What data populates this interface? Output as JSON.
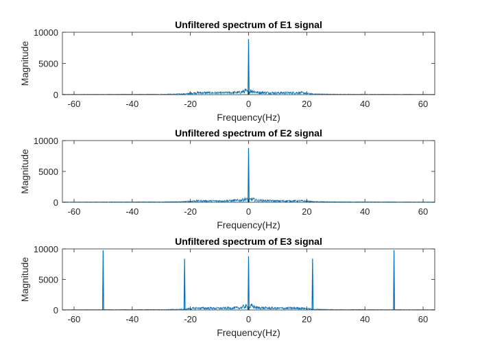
{
  "chart_data": [
    {
      "type": "line",
      "title": "Unfiltered spectrum of E1 signal",
      "xlabel": "Frequency(Hz)",
      "ylabel": "Magnitude",
      "xlim": [
        -64,
        64
      ],
      "ylim": [
        0,
        10000
      ],
      "xticks": [
        -60,
        -40,
        -20,
        0,
        20,
        40,
        60
      ],
      "yticks": [
        0,
        5000,
        10000
      ],
      "grid": false,
      "color": "#0072bd",
      "noise_floor": [
        {
          "x": -64,
          "y": 40
        },
        {
          "x": -30,
          "y": 60
        },
        {
          "x": -22,
          "y": 120
        },
        {
          "x": -18,
          "y": 330
        },
        {
          "x": -10,
          "y": 300
        },
        {
          "x": -3,
          "y": 380
        },
        {
          "x": -1,
          "y": 650
        },
        {
          "x": 0,
          "y": 400
        },
        {
          "x": 1,
          "y": 700
        },
        {
          "x": 3,
          "y": 380
        },
        {
          "x": 10,
          "y": 300
        },
        {
          "x": 18,
          "y": 330
        },
        {
          "x": 22,
          "y": 120
        },
        {
          "x": 30,
          "y": 60
        },
        {
          "x": 64,
          "y": 40
        }
      ],
      "peaks": [
        {
          "x": 0,
          "y": 8900
        }
      ]
    },
    {
      "type": "line",
      "title": "Unfiltered spectrum of E2 signal",
      "xlabel": "Frequency(Hz)",
      "ylabel": "Magnitude",
      "xlim": [
        -64,
        64
      ],
      "ylim": [
        0,
        10000
      ],
      "xticks": [
        -60,
        -40,
        -20,
        0,
        20,
        40,
        60
      ],
      "yticks": [
        0,
        5000,
        10000
      ],
      "grid": false,
      "color": "#0072bd",
      "noise_floor": [
        {
          "x": -64,
          "y": 40
        },
        {
          "x": -30,
          "y": 60
        },
        {
          "x": -22,
          "y": 110
        },
        {
          "x": -18,
          "y": 250
        },
        {
          "x": -10,
          "y": 230
        },
        {
          "x": -3,
          "y": 330
        },
        {
          "x": -1,
          "y": 600
        },
        {
          "x": 0,
          "y": 350
        },
        {
          "x": 1,
          "y": 550
        },
        {
          "x": 3,
          "y": 330
        },
        {
          "x": 10,
          "y": 230
        },
        {
          "x": 18,
          "y": 250
        },
        {
          "x": 22,
          "y": 110
        },
        {
          "x": 30,
          "y": 60
        },
        {
          "x": 64,
          "y": 40
        }
      ],
      "peaks": [
        {
          "x": 0,
          "y": 8800
        }
      ]
    },
    {
      "type": "line",
      "title": "Unfiltered spectrum of E3 signal",
      "xlabel": "Frequency(Hz)",
      "ylabel": "Magnitude",
      "xlim": [
        -64,
        64
      ],
      "ylim": [
        0,
        10000
      ],
      "xticks": [
        -60,
        -40,
        -20,
        0,
        20,
        40,
        60
      ],
      "yticks": [
        0,
        5000,
        10000
      ],
      "grid": false,
      "color": "#0072bd",
      "noise_floor": [
        {
          "x": -64,
          "y": 40
        },
        {
          "x": -30,
          "y": 60
        },
        {
          "x": -22,
          "y": 120
        },
        {
          "x": -18,
          "y": 330
        },
        {
          "x": -10,
          "y": 300
        },
        {
          "x": -3,
          "y": 380
        },
        {
          "x": -1,
          "y": 650
        },
        {
          "x": 0,
          "y": 400
        },
        {
          "x": 1,
          "y": 700
        },
        {
          "x": 3,
          "y": 380
        },
        {
          "x": 10,
          "y": 300
        },
        {
          "x": 18,
          "y": 330
        },
        {
          "x": 22,
          "y": 120
        },
        {
          "x": 30,
          "y": 60
        },
        {
          "x": 64,
          "y": 40
        }
      ],
      "peaks": [
        {
          "x": -50,
          "y": 9800
        },
        {
          "x": -22,
          "y": 8400
        },
        {
          "x": 0,
          "y": 8800
        },
        {
          "x": 22,
          "y": 8400
        },
        {
          "x": 50,
          "y": 9800
        }
      ]
    }
  ]
}
